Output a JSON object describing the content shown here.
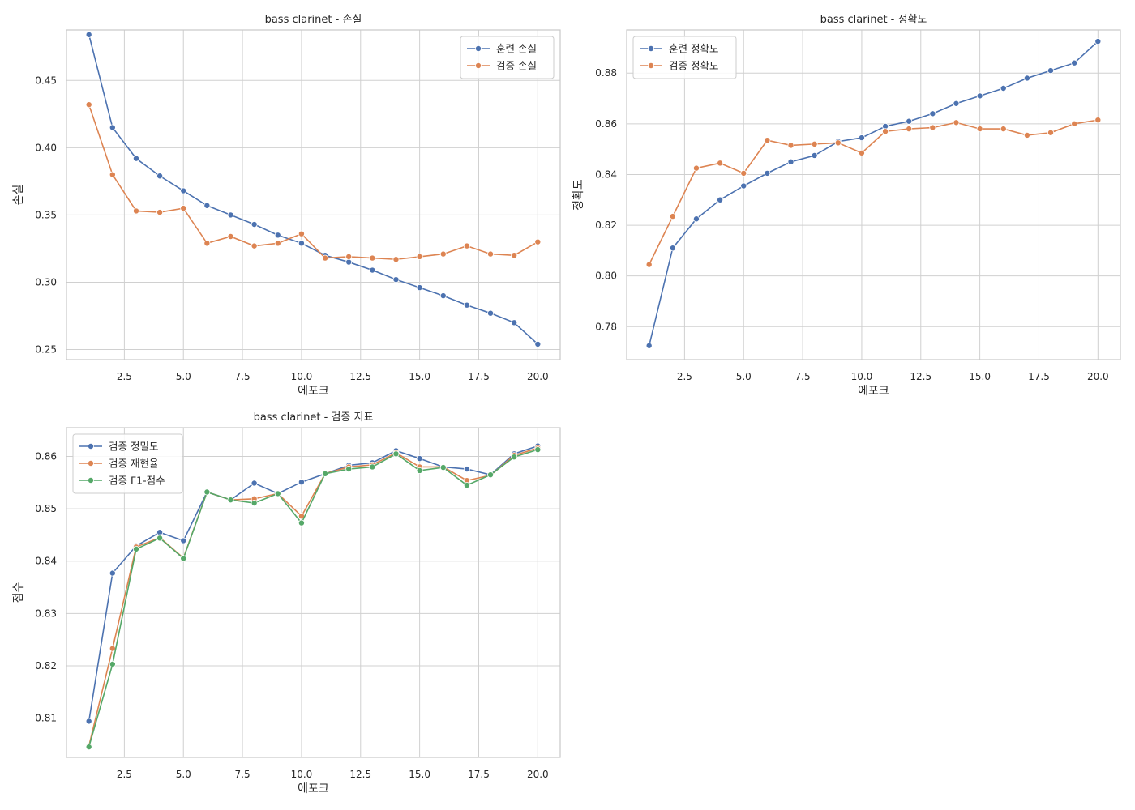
{
  "chart_data": [
    {
      "type": "line",
      "title": "bass clarinet - 손실",
      "xlabel": "에포크",
      "ylabel": "손실",
      "xlim": [
        0.05,
        20.95
      ],
      "ylim": [
        0.2425,
        0.4875
      ],
      "xticks": [
        2.5,
        5.0,
        7.5,
        10.0,
        12.5,
        15.0,
        17.5,
        20.0
      ],
      "xtick_labels": [
        "2.5",
        "5.0",
        "7.5",
        "10.0",
        "12.5",
        "15.0",
        "17.5",
        "20.0"
      ],
      "yticks": [
        0.25,
        0.3,
        0.35,
        0.4,
        0.45
      ],
      "ytick_labels": [
        "0.25",
        "0.30",
        "0.35",
        "0.40",
        "0.45"
      ],
      "grid": true,
      "legend_position": "upper right",
      "x": [
        1,
        2,
        3,
        4,
        5,
        6,
        7,
        8,
        9,
        10,
        11,
        12,
        13,
        14,
        15,
        16,
        17,
        18,
        19,
        20
      ],
      "series": [
        {
          "name": "훈련 손실",
          "color": "#4c72b0",
          "values": [
            0.484,
            0.415,
            0.392,
            0.379,
            0.368,
            0.357,
            0.35,
            0.343,
            0.335,
            0.329,
            0.32,
            0.315,
            0.309,
            0.302,
            0.296,
            0.29,
            0.283,
            0.277,
            0.27,
            0.254
          ]
        },
        {
          "name": "검증 손실",
          "color": "#dd8452",
          "values": [
            0.432,
            0.38,
            0.353,
            0.352,
            0.355,
            0.329,
            0.334,
            0.327,
            0.329,
            0.336,
            0.318,
            0.319,
            0.318,
            0.317,
            0.319,
            0.321,
            0.327,
            0.321,
            0.32,
            0.33
          ]
        }
      ]
    },
    {
      "type": "line",
      "title": "bass clarinet - 정확도",
      "xlabel": "에포크",
      "ylabel": "정확도",
      "xlim": [
        0.05,
        20.95
      ],
      "ylim": [
        0.767,
        0.897
      ],
      "xticks": [
        2.5,
        5.0,
        7.5,
        10.0,
        12.5,
        15.0,
        17.5,
        20.0
      ],
      "xtick_labels": [
        "2.5",
        "5.0",
        "7.5",
        "10.0",
        "12.5",
        "15.0",
        "17.5",
        "20.0"
      ],
      "yticks": [
        0.78,
        0.8,
        0.82,
        0.84,
        0.86,
        0.88
      ],
      "ytick_labels": [
        "0.78",
        "0.80",
        "0.82",
        "0.84",
        "0.86",
        "0.88"
      ],
      "grid": true,
      "legend_position": "upper left",
      "x": [
        1,
        2,
        3,
        4,
        5,
        6,
        7,
        8,
        9,
        10,
        11,
        12,
        13,
        14,
        15,
        16,
        17,
        18,
        19,
        20
      ],
      "series": [
        {
          "name": "훈련 정확도",
          "color": "#4c72b0",
          "values": [
            0.7725,
            0.811,
            0.8225,
            0.83,
            0.8355,
            0.8405,
            0.845,
            0.8475,
            0.853,
            0.8545,
            0.859,
            0.861,
            0.864,
            0.868,
            0.871,
            0.874,
            0.878,
            0.881,
            0.884,
            0.8925
          ]
        },
        {
          "name": "검증 정확도",
          "color": "#dd8452",
          "values": [
            0.8045,
            0.8235,
            0.8425,
            0.8445,
            0.8405,
            0.8535,
            0.8515,
            0.852,
            0.8525,
            0.8485,
            0.857,
            0.858,
            0.8585,
            0.8605,
            0.858,
            0.858,
            0.8555,
            0.8565,
            0.86,
            0.8615
          ]
        }
      ]
    },
    {
      "type": "line",
      "title": "bass clarinet - 검증 지표",
      "xlabel": "에포크",
      "ylabel": "점수",
      "xlim": [
        0.05,
        20.95
      ],
      "ylim": [
        0.8025,
        0.8655
      ],
      "xticks": [
        2.5,
        5.0,
        7.5,
        10.0,
        12.5,
        15.0,
        17.5,
        20.0
      ],
      "xtick_labels": [
        "2.5",
        "5.0",
        "7.5",
        "10.0",
        "12.5",
        "15.0",
        "17.5",
        "20.0"
      ],
      "yticks": [
        0.81,
        0.82,
        0.83,
        0.84,
        0.85,
        0.86
      ],
      "ytick_labels": [
        "0.81",
        "0.82",
        "0.83",
        "0.84",
        "0.85",
        "0.86"
      ],
      "grid": true,
      "legend_position": "upper left",
      "x": [
        1,
        2,
        3,
        4,
        5,
        6,
        7,
        8,
        9,
        10,
        11,
        12,
        13,
        14,
        15,
        16,
        17,
        18,
        19,
        20
      ],
      "series": [
        {
          "name": "검증 정밀도",
          "color": "#4c72b0",
          "values": [
            0.8094,
            0.8377,
            0.8429,
            0.8455,
            0.8439,
            0.8532,
            0.8517,
            0.8549,
            0.8529,
            0.8551,
            0.8567,
            0.8583,
            0.8588,
            0.8611,
            0.8596,
            0.858,
            0.8576,
            0.8565,
            0.8605,
            0.862
          ]
        },
        {
          "name": "검증 재현율",
          "color": "#dd8452",
          "values": [
            0.8047,
            0.8233,
            0.8427,
            0.8445,
            0.8406,
            0.8532,
            0.8517,
            0.8519,
            0.8529,
            0.8486,
            0.8567,
            0.858,
            0.8584,
            0.8607,
            0.858,
            0.858,
            0.8554,
            0.8564,
            0.8602,
            0.8616
          ]
        },
        {
          "name": "검증 F1-점수",
          "color": "#55a868",
          "values": [
            0.8045,
            0.8203,
            0.8423,
            0.8444,
            0.8405,
            0.8532,
            0.8517,
            0.8511,
            0.8529,
            0.8473,
            0.8567,
            0.8576,
            0.858,
            0.8605,
            0.8573,
            0.8579,
            0.8545,
            0.8565,
            0.8599,
            0.8613
          ]
        }
      ]
    }
  ]
}
